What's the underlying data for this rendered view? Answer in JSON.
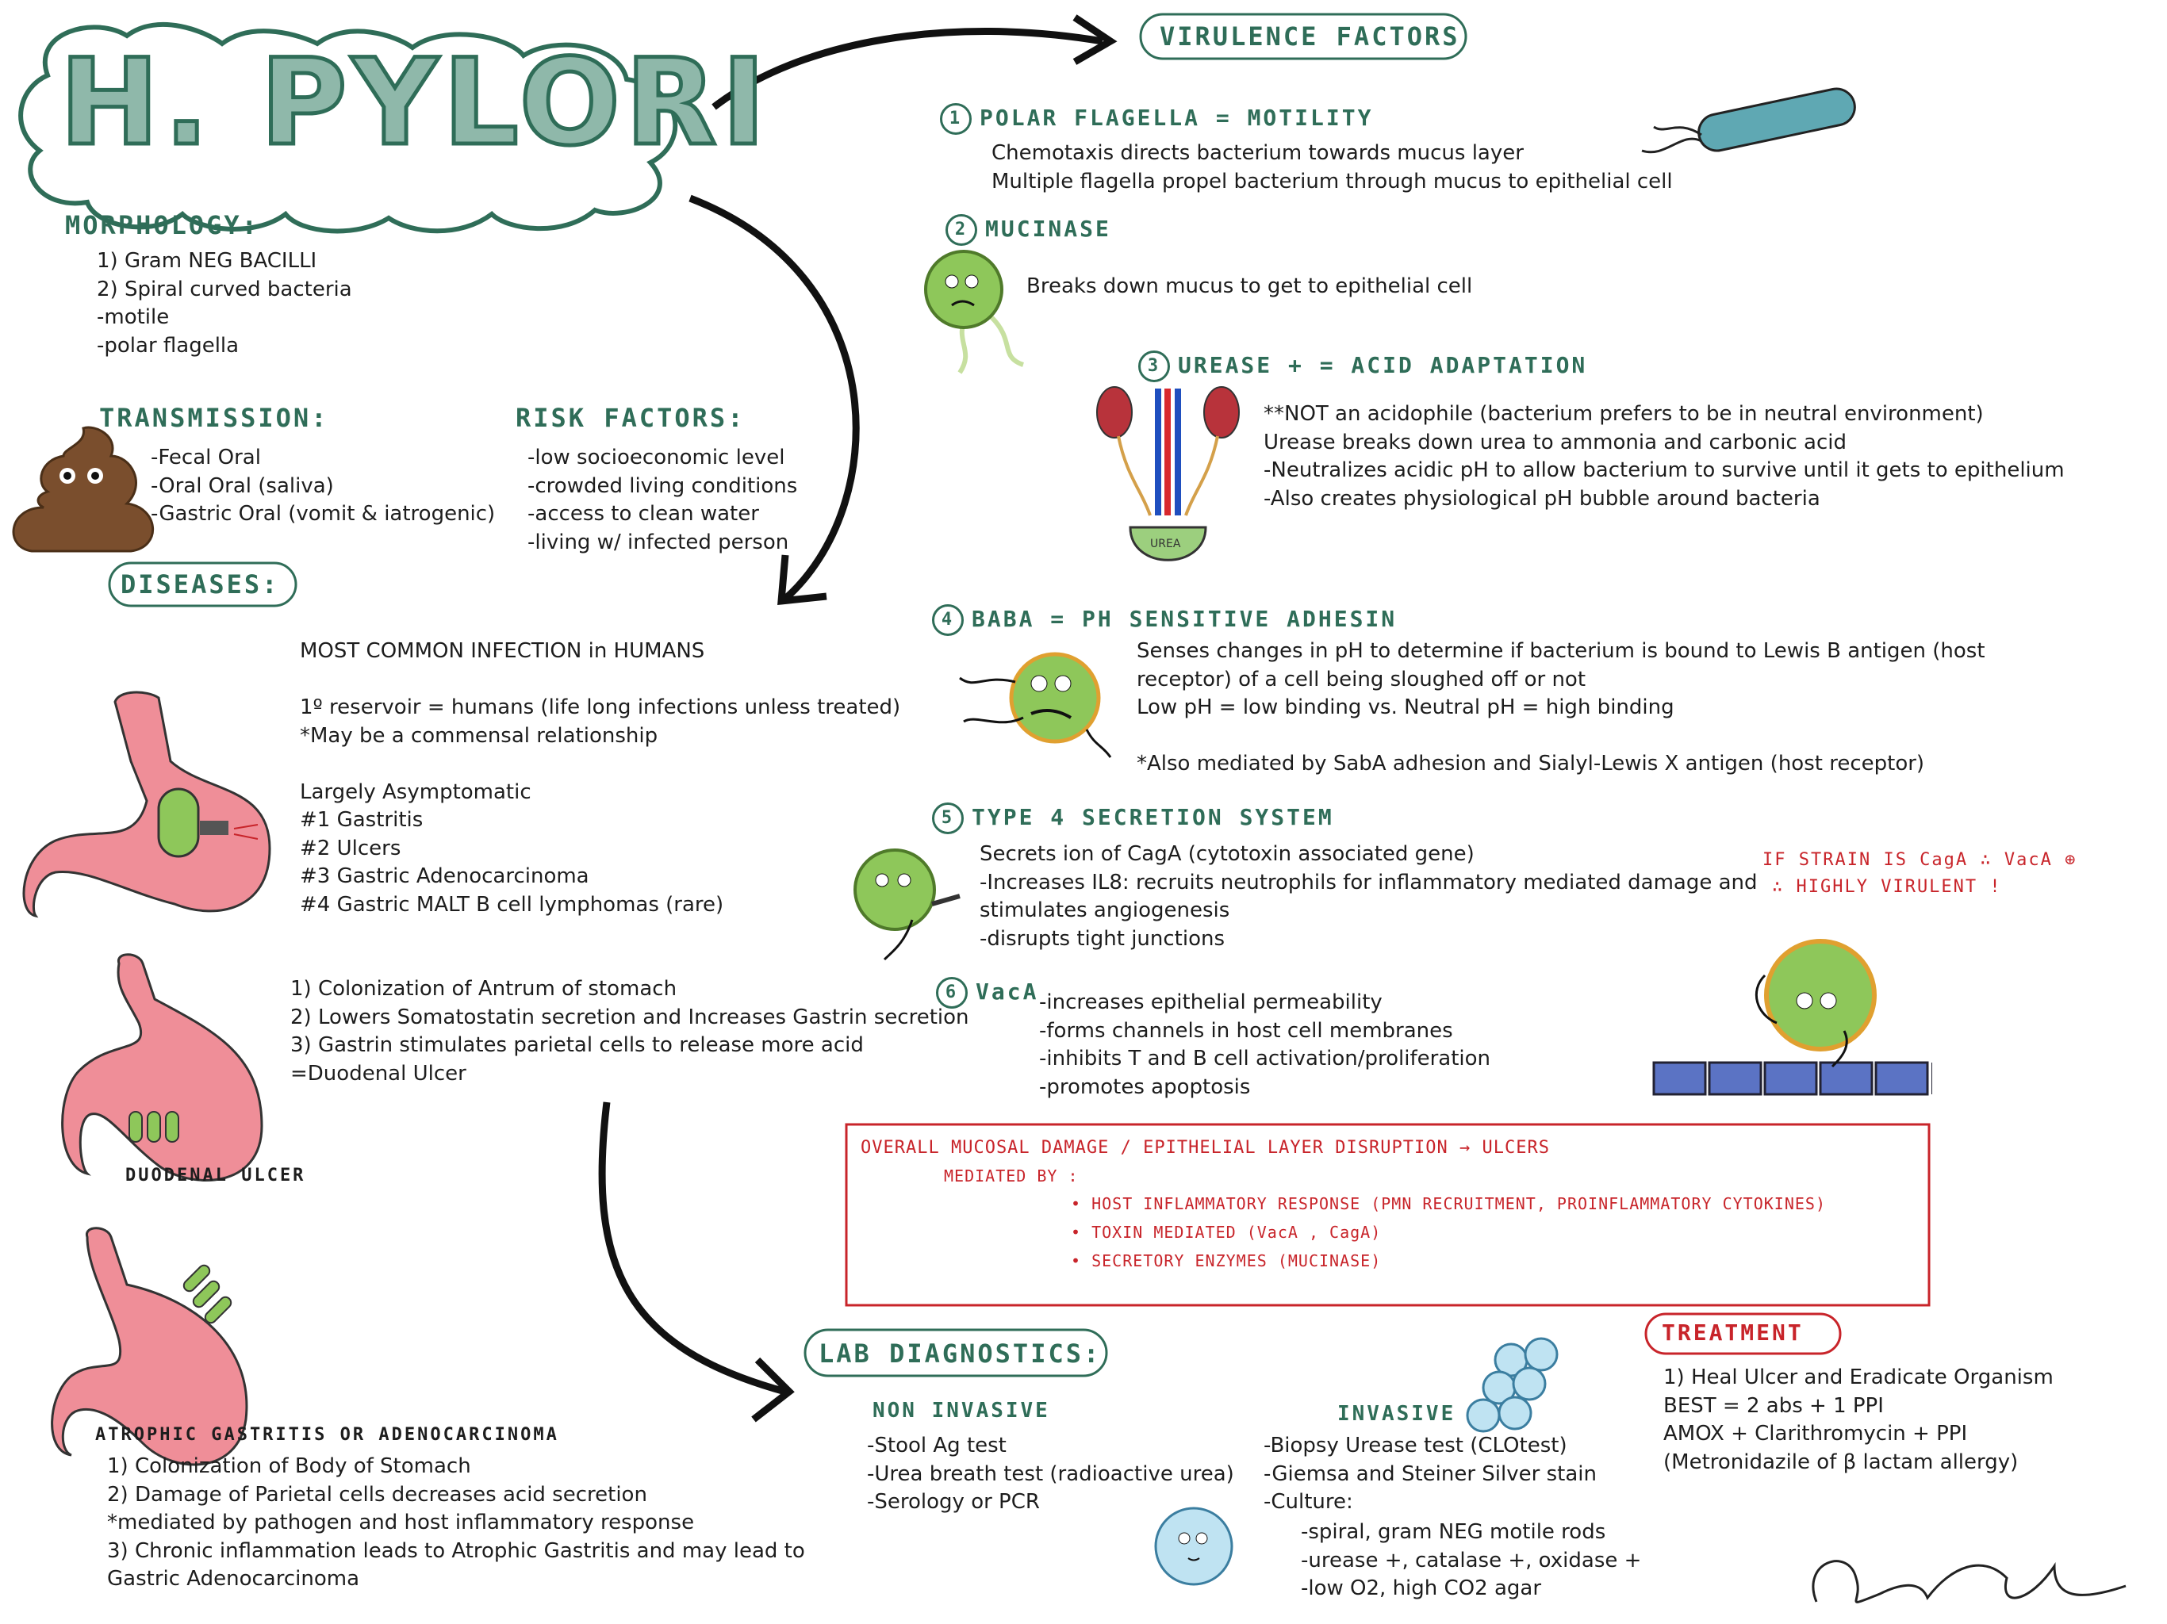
{
  "title": "H. PYLORI",
  "morphology": {
    "heading": "MORPHOLOGY:",
    "items": [
      "1) Gram NEG BACILLI",
      "2) Spiral curved bacteria",
      "-motile",
      "-polar flagella"
    ]
  },
  "transmission": {
    "heading": "TRANSMISSION:",
    "items": [
      "-Fecal Oral",
      "-Oral Oral (saliva)",
      "-Gastric Oral (vomit & iatrogenic)"
    ]
  },
  "risk_factors": {
    "heading": "RISK FACTORS:",
    "items": [
      "-low socioeconomic level",
      "-crowded living conditions",
      "-access to clean water",
      "-living w/ infected person"
    ]
  },
  "diseases": {
    "heading": "DISEASES:",
    "intro": [
      "MOST COMMON INFECTION in HUMANS",
      "",
      "1º reservoir = humans (life long infections unless treated)",
      "*May be a commensal relationship",
      "",
      "Largely Asymptomatic",
      "#1 Gastritis",
      "#2 Ulcers",
      "#3 Gastric Adenocarcinoma",
      "#4 Gastric MALT B cell lymphomas (rare)"
    ],
    "duodenal": [
      "1) Colonization of Antrum of stomach",
      "2) Lowers Somatostatin secretion and Increases Gastrin secretion",
      "3) Gastrin stimulates parietal cells to release more acid",
      "=Duodenal Ulcer"
    ],
    "duodenal_label": "DUODENAL ULCER",
    "atrophic_label": "ATROPHIC GASTRITIS OR ADENOCARCINOMA",
    "atrophic": [
      "1) Colonization of Body of Stomach",
      "2) Damage of Parietal cells decreases acid secretion",
      "*mediated by pathogen and host inflammatory response",
      "3) Chronic inflammation leads to Atrophic Gastritis and may lead to",
      "Gastric Adenocarcinoma"
    ]
  },
  "virulence": {
    "heading": "VIRULENCE FACTORS",
    "factors": [
      {
        "num": "1",
        "title": "POLAR FLAGELLA = MOTILITY",
        "lines": [
          "Chemotaxis directs bacterium towards mucus layer",
          "Multiple flagella propel bacterium through mucus to epithelial cell"
        ]
      },
      {
        "num": "2",
        "title": "MUCINASE",
        "lines": [
          "Breaks down mucus to get to epithelial cell"
        ]
      },
      {
        "num": "3",
        "title": "UREASE + = ACID ADAPTATION",
        "lines": [
          "**NOT an acidophile (bacterium prefers to be in neutral environment)",
          "Urease breaks down urea to ammonia and carbonic acid",
          "-Neutralizes acidic pH to allow bacterium to survive until it gets to epithelium",
          "-Also creates physiological pH bubble around bacteria"
        ]
      },
      {
        "num": "4",
        "title": "BabA = pH SENSITIVE ADHESIN",
        "lines": [
          "Senses changes in pH to determine if bacterium is bound to Lewis B antigen (host",
          "receptor) of a cell being sloughed off or not",
          "Low pH = low binding vs. Neutral pH = high binding",
          "",
          "*Also mediated by SabA adhesion and Sialyl-Lewis X antigen (host receptor)"
        ]
      },
      {
        "num": "5",
        "title": "TYPE 4 SECRETION SYSTEM",
        "lines": [
          "Secrets ion of CagA (cytotoxin associated gene)",
          "-Increases IL8: recruits neutrophils for inflammatory mediated damage and",
          "stimulates angiogenesis",
          "-disrupts tight junctions"
        ]
      },
      {
        "num": "6",
        "title": "VacA",
        "lines": [
          "-increases epithelial permeability",
          "-forms channels in host cell membranes",
          "-inhibits T and B cell activation/proliferation",
          "-promotes apoptosis"
        ]
      }
    ],
    "cag_note": [
      "IF STRAIN IS CagA ∴ VacA ⊕",
      "∴ HIGHLY VIRULENT !"
    ],
    "bladder_label": "UREA"
  },
  "overall": {
    "title": "OVERALL MUCOSAL DAMAGE / EPITHELIAL LAYER DISRUPTION → ULCERS",
    "sub": "MEDIATED BY :",
    "items": [
      "• HOST INFLAMMATORY RESPONSE (PMN RECRUITMENT, PROINFLAMMATORY CYTOKINES)",
      "• TOXIN MEDIATED (VacA , CagA)",
      "• SECRETORY ENZYMES (MUCINASE)"
    ]
  },
  "lab": {
    "heading": "LAB DIAGNOSTICS:",
    "noninvasive_heading": "NON INVASIVE",
    "noninvasive": [
      "-Stool Ag test",
      "-Urea breath test (radioactive urea)",
      "-Serology or PCR"
    ],
    "invasive_heading": "INVASIVE",
    "invasive": [
      "-Biopsy Urease test (CLOtest)",
      "-Giemsa and Steiner Silver stain",
      "-Culture:"
    ],
    "culture": [
      "-spiral, gram NEG motile rods",
      "-urease +, catalase +, oxidase +",
      "-low O2, high CO2 agar"
    ]
  },
  "treatment": {
    "heading": "TREATMENT",
    "items": [
      "1) Heal Ulcer and Eradicate Organism",
      "BEST = 2 abs + 1 PPI",
      "AMOX + Clarithromycin + PPI",
      "(Metronidazile of β lactam allergy)"
    ]
  },
  "colors": {
    "teal": "#8fb8aa",
    "dark_green": "#2f6d58",
    "red": "#c8242a",
    "stomach": "#ef8e98",
    "bacteria": "#8ec75a"
  }
}
